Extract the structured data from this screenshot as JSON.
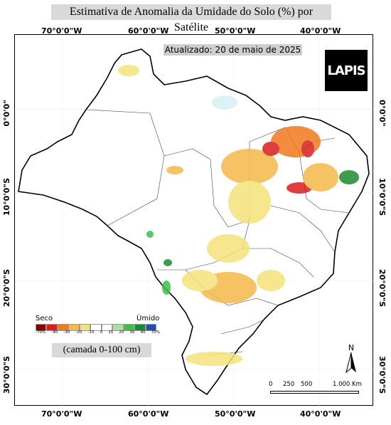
{
  "title": "Estimativa de Anomalia da Umidade do Solo (%) por Satélite",
  "updated": "Atualizado: 20 de maio de 2025",
  "logo_text": "LAPIS",
  "layer_note": "(camada 0-100 cm)",
  "legend": {
    "dry_label": "Seco",
    "wet_label": "Úmido",
    "ticks": [
      "-70%",
      "-40",
      "-30",
      "-20",
      "-15",
      "0",
      "15",
      "20",
      "30",
      "40",
      "70%"
    ],
    "colors": [
      "#8b0000",
      "#d81e1e",
      "#f07a1e",
      "#f5b94a",
      "#f5e27a",
      "#ffffff",
      "#ffffff",
      "#a8e0a0",
      "#3cbf4a",
      "#1e8a30",
      "#1f4fa8"
    ]
  },
  "lon_ticks": [
    "70°0'0\"W",
    "60°0'0\"W",
    "50°0'0\"W",
    "40°0'0\"W"
  ],
  "lat_ticks": [
    "0°0'0\"",
    "10°0'0\"S",
    "20°0'0\"S",
    "30°0'0\"S"
  ],
  "north_label": "N",
  "scale": {
    "labels": [
      "0",
      "250",
      "500",
      "1.000 Km"
    ]
  }
}
